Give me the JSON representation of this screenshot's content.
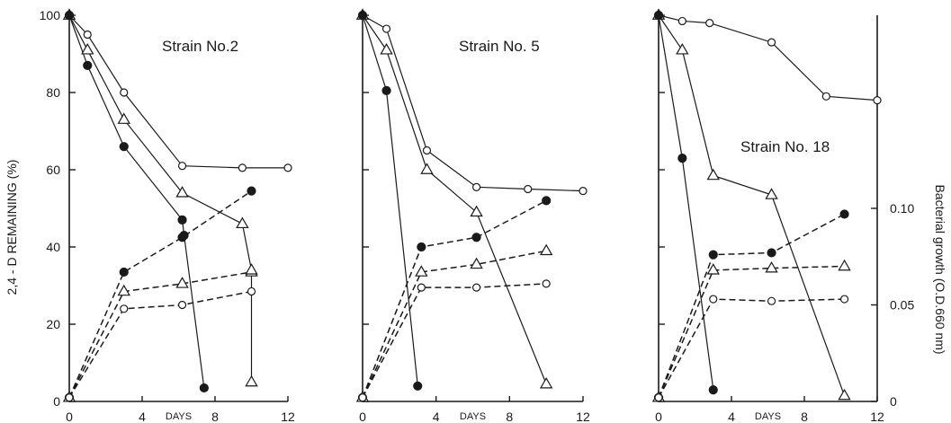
{
  "chart_data": {
    "type": "line",
    "shared": {
      "xlabel": "DAYS",
      "ylabel_left": "2,4 - D REMAINING (%)",
      "ylabel_right": "Bacterial growth (O.D.660 nm)",
      "x_ticks": [
        "0",
        "4",
        "8",
        "12"
      ],
      "y_ticks_left": [
        "0",
        "20",
        "40",
        "60",
        "80",
        "100"
      ],
      "y_ticks_right": [
        "0",
        "0.05",
        "0.10"
      ],
      "xlim": [
        0,
        12
      ],
      "ylim_left": [
        0,
        100
      ],
      "ylim_right": [
        0,
        0.2
      ]
    },
    "panels": [
      {
        "title": "Strain No.2",
        "remaining_series": [
          {
            "marker": "open-circle",
            "points": [
              [
                0,
                100
              ],
              [
                1,
                95
              ],
              [
                3,
                80
              ],
              [
                6.2,
                61
              ],
              [
                9.5,
                60.5
              ],
              [
                12,
                60.5
              ]
            ]
          },
          {
            "marker": "open-triangle",
            "points": [
              [
                0,
                100
              ],
              [
                1,
                91
              ],
              [
                3,
                73
              ],
              [
                6.2,
                54
              ],
              [
                9.5,
                46
              ],
              [
                10,
                34
              ],
              [
                10,
                5
              ]
            ]
          },
          {
            "marker": "filled-circle",
            "points": [
              [
                0,
                100
              ],
              [
                1,
                87
              ],
              [
                3,
                66
              ],
              [
                6.2,
                47
              ],
              [
                6.3,
                43
              ],
              [
                7.4,
                3.5
              ]
            ]
          }
        ],
        "growth_series": [
          {
            "marker": "filled-circle",
            "points": [
              [
                0,
                0.002
              ],
              [
                3,
                0.067
              ],
              [
                6.2,
                0.085
              ],
              [
                10,
                0.109
              ]
            ]
          },
          {
            "marker": "open-triangle",
            "points": [
              [
                0,
                0.002
              ],
              [
                3,
                0.057
              ],
              [
                6.2,
                0.061
              ],
              [
                10,
                0.067
              ]
            ]
          },
          {
            "marker": "open-circle",
            "points": [
              [
                0,
                0.002
              ],
              [
                3,
                0.048
              ],
              [
                6.2,
                0.05
              ],
              [
                10,
                0.057
              ]
            ]
          }
        ]
      },
      {
        "title": "Strain No. 5",
        "remaining_series": [
          {
            "marker": "open-circle",
            "points": [
              [
                0,
                100
              ],
              [
                1.3,
                96.5
              ],
              [
                3.5,
                65
              ],
              [
                6.2,
                55.5
              ],
              [
                9,
                55
              ],
              [
                12,
                54.5
              ]
            ]
          },
          {
            "marker": "open-triangle",
            "points": [
              [
                0,
                100
              ],
              [
                1.3,
                91
              ],
              [
                3.5,
                60
              ],
              [
                6.2,
                49
              ],
              [
                10,
                4.5
              ]
            ]
          },
          {
            "marker": "filled-circle",
            "points": [
              [
                0,
                100
              ],
              [
                1.3,
                80.5
              ],
              [
                3,
                4
              ]
            ]
          }
        ],
        "growth_series": [
          {
            "marker": "filled-circle",
            "points": [
              [
                0,
                0.002
              ],
              [
                3.2,
                0.08
              ],
              [
                6.2,
                0.085
              ],
              [
                10,
                0.104
              ]
            ]
          },
          {
            "marker": "open-triangle",
            "points": [
              [
                0,
                0.002
              ],
              [
                3.2,
                0.067
              ],
              [
                6.2,
                0.071
              ],
              [
                10,
                0.078
              ]
            ]
          },
          {
            "marker": "open-circle",
            "points": [
              [
                0,
                0.002
              ],
              [
                3.2,
                0.059
              ],
              [
                6.2,
                0.059
              ],
              [
                10,
                0.061
              ]
            ]
          }
        ]
      },
      {
        "title": "Strain No. 18",
        "remaining_series": [
          {
            "marker": "open-circle",
            "points": [
              [
                0,
                100
              ],
              [
                1.3,
                98.5
              ],
              [
                2.8,
                98
              ],
              [
                6.2,
                93
              ],
              [
                9.2,
                79
              ],
              [
                12,
                78
              ]
            ]
          },
          {
            "marker": "open-triangle",
            "points": [
              [
                0,
                100
              ],
              [
                1.3,
                91
              ],
              [
                3,
                58.5
              ],
              [
                6.2,
                53.5
              ],
              [
                10.2,
                1.5
              ]
            ]
          },
          {
            "marker": "filled-circle",
            "points": [
              [
                0,
                100
              ],
              [
                1.3,
                63
              ],
              [
                3,
                3
              ]
            ]
          }
        ],
        "growth_series": [
          {
            "marker": "filled-circle",
            "points": [
              [
                0,
                0.002
              ],
              [
                3,
                0.076
              ],
              [
                6.2,
                0.077
              ],
              [
                10.2,
                0.097
              ]
            ]
          },
          {
            "marker": "open-triangle",
            "points": [
              [
                0,
                0.002
              ],
              [
                3,
                0.068
              ],
              [
                6.2,
                0.069
              ],
              [
                10.2,
                0.07
              ]
            ]
          },
          {
            "marker": "open-circle",
            "points": [
              [
                0,
                0.002
              ],
              [
                3,
                0.053
              ],
              [
                6.2,
                0.052
              ],
              [
                10.2,
                0.053
              ]
            ]
          }
        ]
      }
    ]
  }
}
